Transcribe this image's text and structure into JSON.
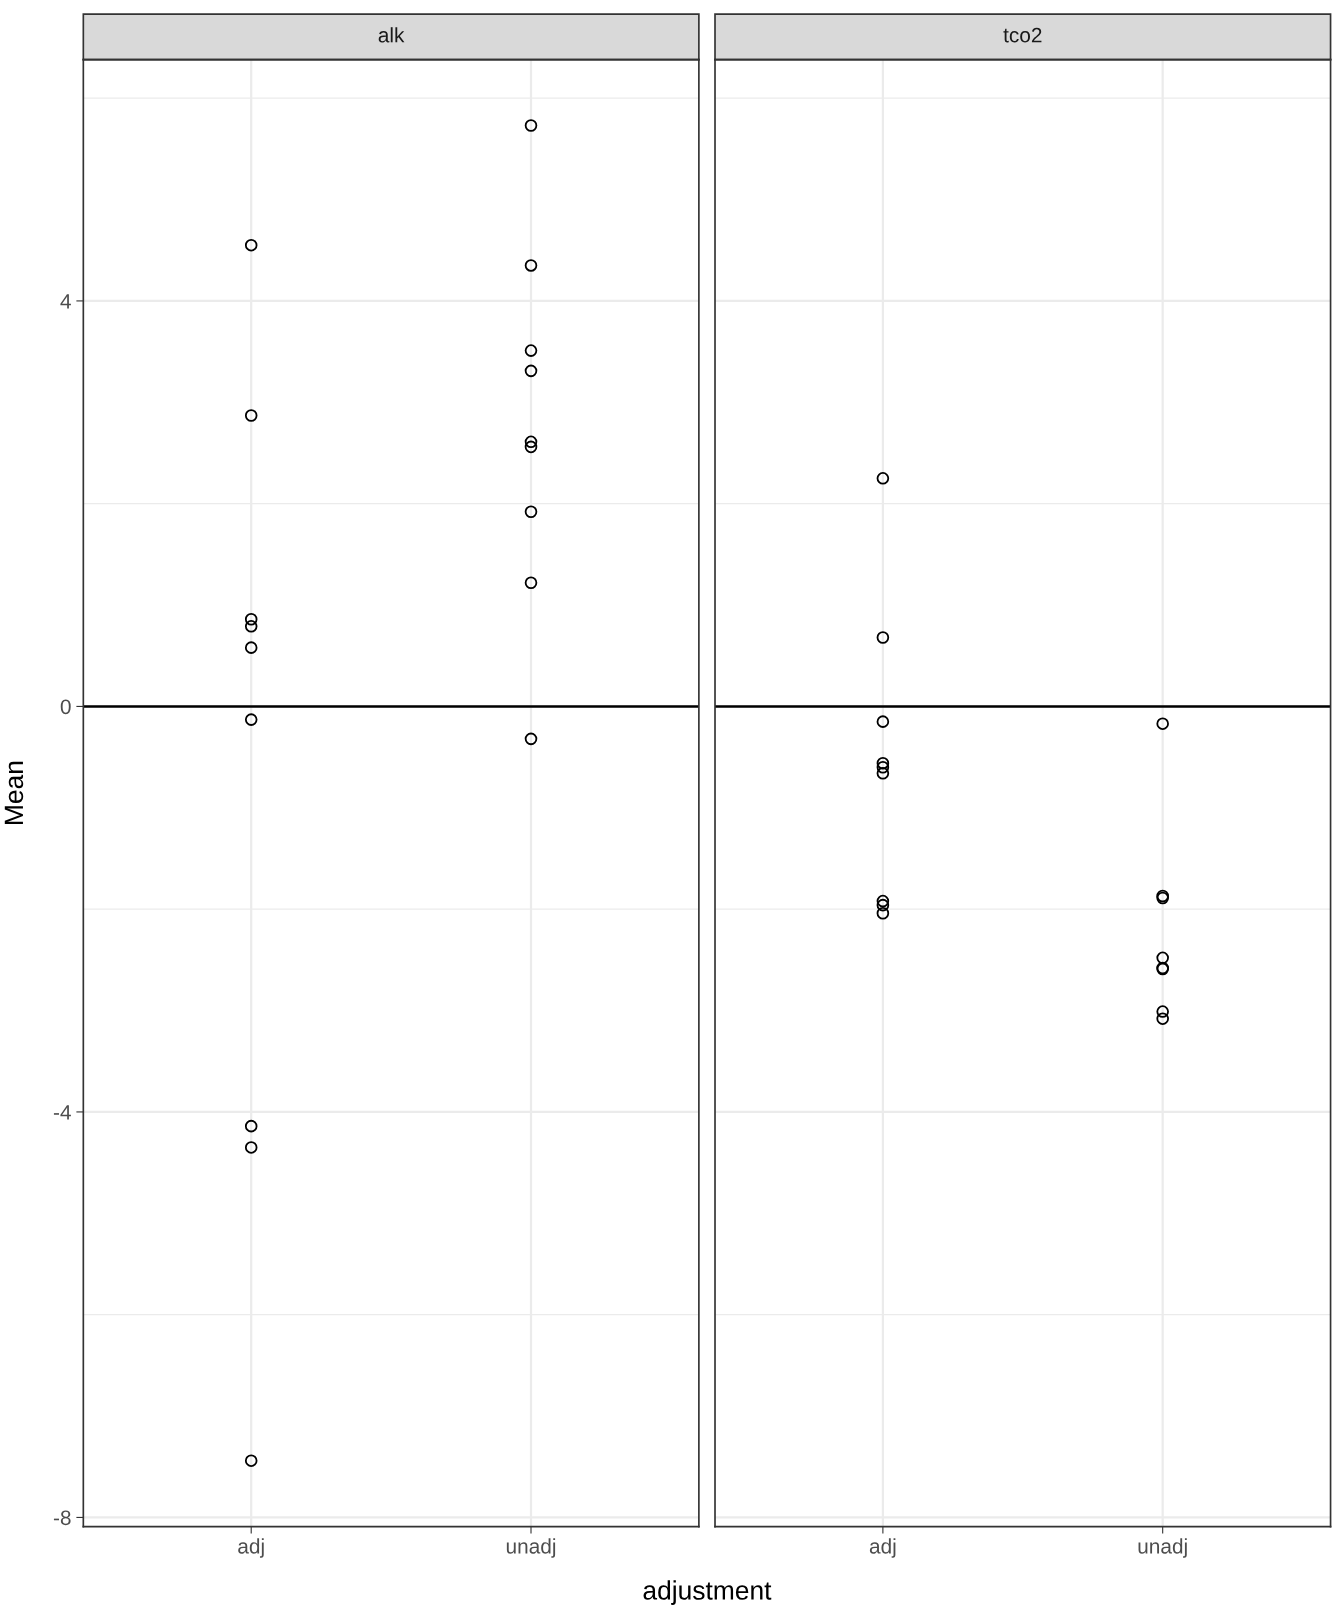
{
  "chart_data": [
    {
      "type": "scatter",
      "title": "alk",
      "xlabel": "adjustment",
      "ylabel": "Mean",
      "categories": [
        "adj",
        "unadj"
      ],
      "marker": "circle",
      "grid": true,
      "ylim": [
        -8.09,
        6.38
      ],
      "yticks": [
        -8,
        {
          "value": -6,
          "label": null
        },
        -4,
        {
          "value": -2,
          "label": null
        },
        0,
        {
          "value": 2,
          "label": null
        },
        4,
        {
          "value": 6,
          "label": null
        }
      ],
      "ref_lines": [
        {
          "axis": "y",
          "value": 0,
          "color": "#000000"
        }
      ],
      "series": [
        {
          "color": "#000000",
          "x": [
            "adj",
            "adj",
            "adj",
            "adj",
            "adj",
            "adj",
            "adj",
            "adj",
            "adj"
          ],
          "values": [
            4.55,
            2.87,
            0.86,
            0.79,
            0.58,
            -0.13,
            -4.14,
            -4.35,
            -7.44
          ]
        },
        {
          "color": "#000000",
          "x": [
            "unadj",
            "unadj",
            "unadj",
            "unadj",
            "unadj",
            "unadj",
            "unadj",
            "unadj",
            "unadj"
          ],
          "values": [
            5.73,
            4.35,
            3.51,
            3.31,
            2.61,
            2.56,
            1.92,
            1.22,
            -0.32
          ]
        }
      ]
    },
    {
      "type": "scatter",
      "title": "tco2",
      "categories": [
        "adj",
        "unadj"
      ],
      "marker": "circle",
      "grid": true,
      "tick_labels": "x",
      "ylim": [
        -8.09,
        6.38
      ],
      "yticks": [
        -8,
        {
          "value": -6,
          "label": null
        },
        -4,
        {
          "value": -2,
          "label": null
        },
        0,
        {
          "value": 2,
          "label": null
        },
        4,
        {
          "value": 6,
          "label": null
        }
      ],
      "ref_lines": [
        {
          "axis": "y",
          "value": 0,
          "color": "#000000"
        }
      ],
      "series": [
        {
          "color": "#000000",
          "x": [
            "adj",
            "adj",
            "adj",
            "adj",
            "adj",
            "adj",
            "adj",
            "adj",
            "adj"
          ],
          "values": [
            2.25,
            0.68,
            -0.15,
            -0.56,
            -0.6,
            -0.66,
            -1.92,
            -1.96,
            -2.04
          ]
        },
        {
          "color": "#000000",
          "x": [
            "unadj",
            "unadj",
            "unadj",
            "unadj",
            "unadj",
            "unadj",
            "unadj",
            "unadj"
          ],
          "values": [
            -0.17,
            -1.87,
            -1.89,
            -2.48,
            -2.58,
            -2.59,
            -3.01,
            -3.08
          ]
        }
      ]
    }
  ]
}
